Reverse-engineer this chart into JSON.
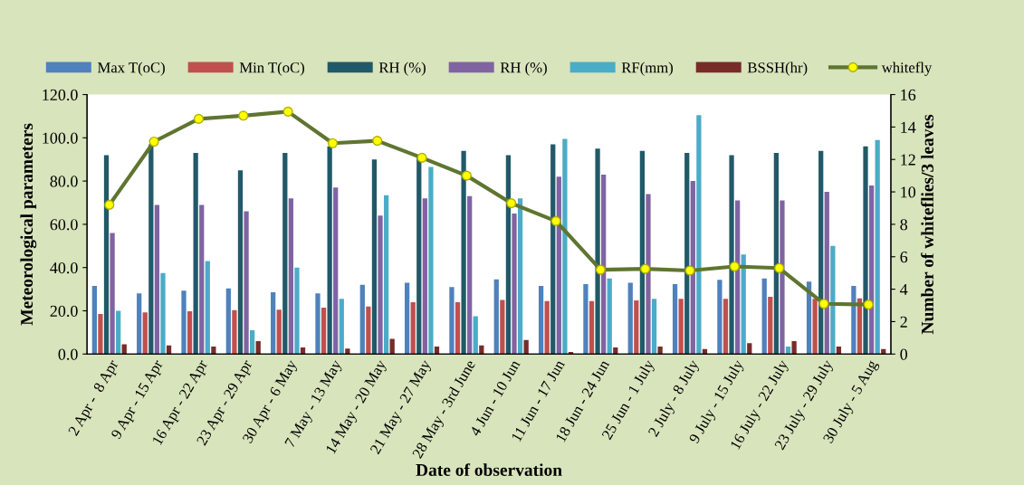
{
  "chart_data": {
    "type": "bar",
    "xlabel": "Date of observation",
    "ylabel": "Meteorological parameters",
    "y2label": "Number of whiteflies/3 leaves",
    "categories": [
      "2 Apr -  8 Apr",
      "9 Apr - 15 Apr",
      "16 Apr - 22 Apr",
      "23 Apr - 29 Apr",
      "30 Apr - 6 May",
      "7 May - 13 May",
      "14 May - 20 May",
      "21 May - 27 May",
      "28 May - 3rd June",
      "4 Jun - 10 Jun",
      "11 Jun - 17 Jun",
      "18 Jun - 24 Jun",
      "25 Jun - 1 July",
      "2 July - 8 July",
      "9 July - 15 July",
      "16 July - 22 July",
      "23 July - 29 July",
      "30 July - 5 Aug"
    ],
    "series": [
      {
        "name": "Max T(oC)",
        "color": "#4f81bd",
        "values": [
          31.5,
          28,
          29.3,
          30.4,
          28.6,
          28,
          32,
          33,
          31,
          34.5,
          31.5,
          32.3,
          33,
          32.3,
          34.3,
          35,
          33.5,
          31.5
        ]
      },
      {
        "name": "Min T(oC)",
        "color": "#c0504d",
        "values": [
          18.5,
          19.3,
          19.8,
          20.3,
          20.5,
          21.5,
          22,
          24,
          24,
          25,
          24.5,
          24.5,
          24.8,
          25.5,
          25.5,
          26.5,
          25.5,
          25.7
        ]
      },
      {
        "name": "RH (%)",
        "color": "#215968",
        "values": [
          92,
          97,
          93,
          85,
          93,
          96,
          90,
          92,
          94,
          92,
          97,
          95,
          94,
          93,
          92,
          93,
          94,
          96
        ]
      },
      {
        "name": "RH (%)",
        "color": "#8064a2",
        "values": [
          56,
          69,
          69,
          66,
          72,
          77,
          64,
          72,
          73,
          65,
          82,
          83,
          74,
          80,
          71,
          71,
          75,
          78
        ]
      },
      {
        "name": "RF(mm)",
        "color": "#4bacc6",
        "values": [
          20,
          37.5,
          43,
          11,
          40,
          25.5,
          73.5,
          86.5,
          17.5,
          72,
          99.5,
          35,
          25.5,
          110.5,
          46,
          3.5,
          50,
          99
        ]
      },
      {
        "name": "BSSH(hr)",
        "color": "#772c2a",
        "values": [
          4.5,
          4,
          3.5,
          6,
          3,
          2.5,
          7,
          3.5,
          4,
          6.5,
          1,
          3,
          3.5,
          2.3,
          5,
          6,
          3.5,
          2.3
        ]
      },
      {
        "name": "whitefly",
        "type": "line",
        "axis": "y2",
        "color": "#5f7530",
        "marker": "circle",
        "values": [
          9.2,
          13.1,
          14.5,
          14.7,
          14.95,
          13.0,
          13.15,
          12.1,
          11.0,
          9.3,
          8.2,
          5.2,
          5.25,
          5.15,
          5.4,
          5.3,
          3.1,
          3.05
        ]
      }
    ],
    "ylim": [
      0,
      120
    ],
    "yticks": [
      {
        "value": 0,
        "label": "0.0"
      },
      {
        "value": 20,
        "label": "20.0"
      },
      {
        "value": 40,
        "label": "40.0"
      },
      {
        "value": 60,
        "label": "60.0"
      },
      {
        "value": 80,
        "label": "80.0"
      },
      {
        "value": 100,
        "label": "100.0"
      },
      {
        "value": 120,
        "label": "120.0"
      }
    ],
    "y2lim": [
      0,
      16
    ],
    "y2ticks": [
      0,
      2,
      4,
      6,
      8,
      10,
      12,
      14,
      16
    ],
    "grid": false,
    "legend": "top"
  }
}
